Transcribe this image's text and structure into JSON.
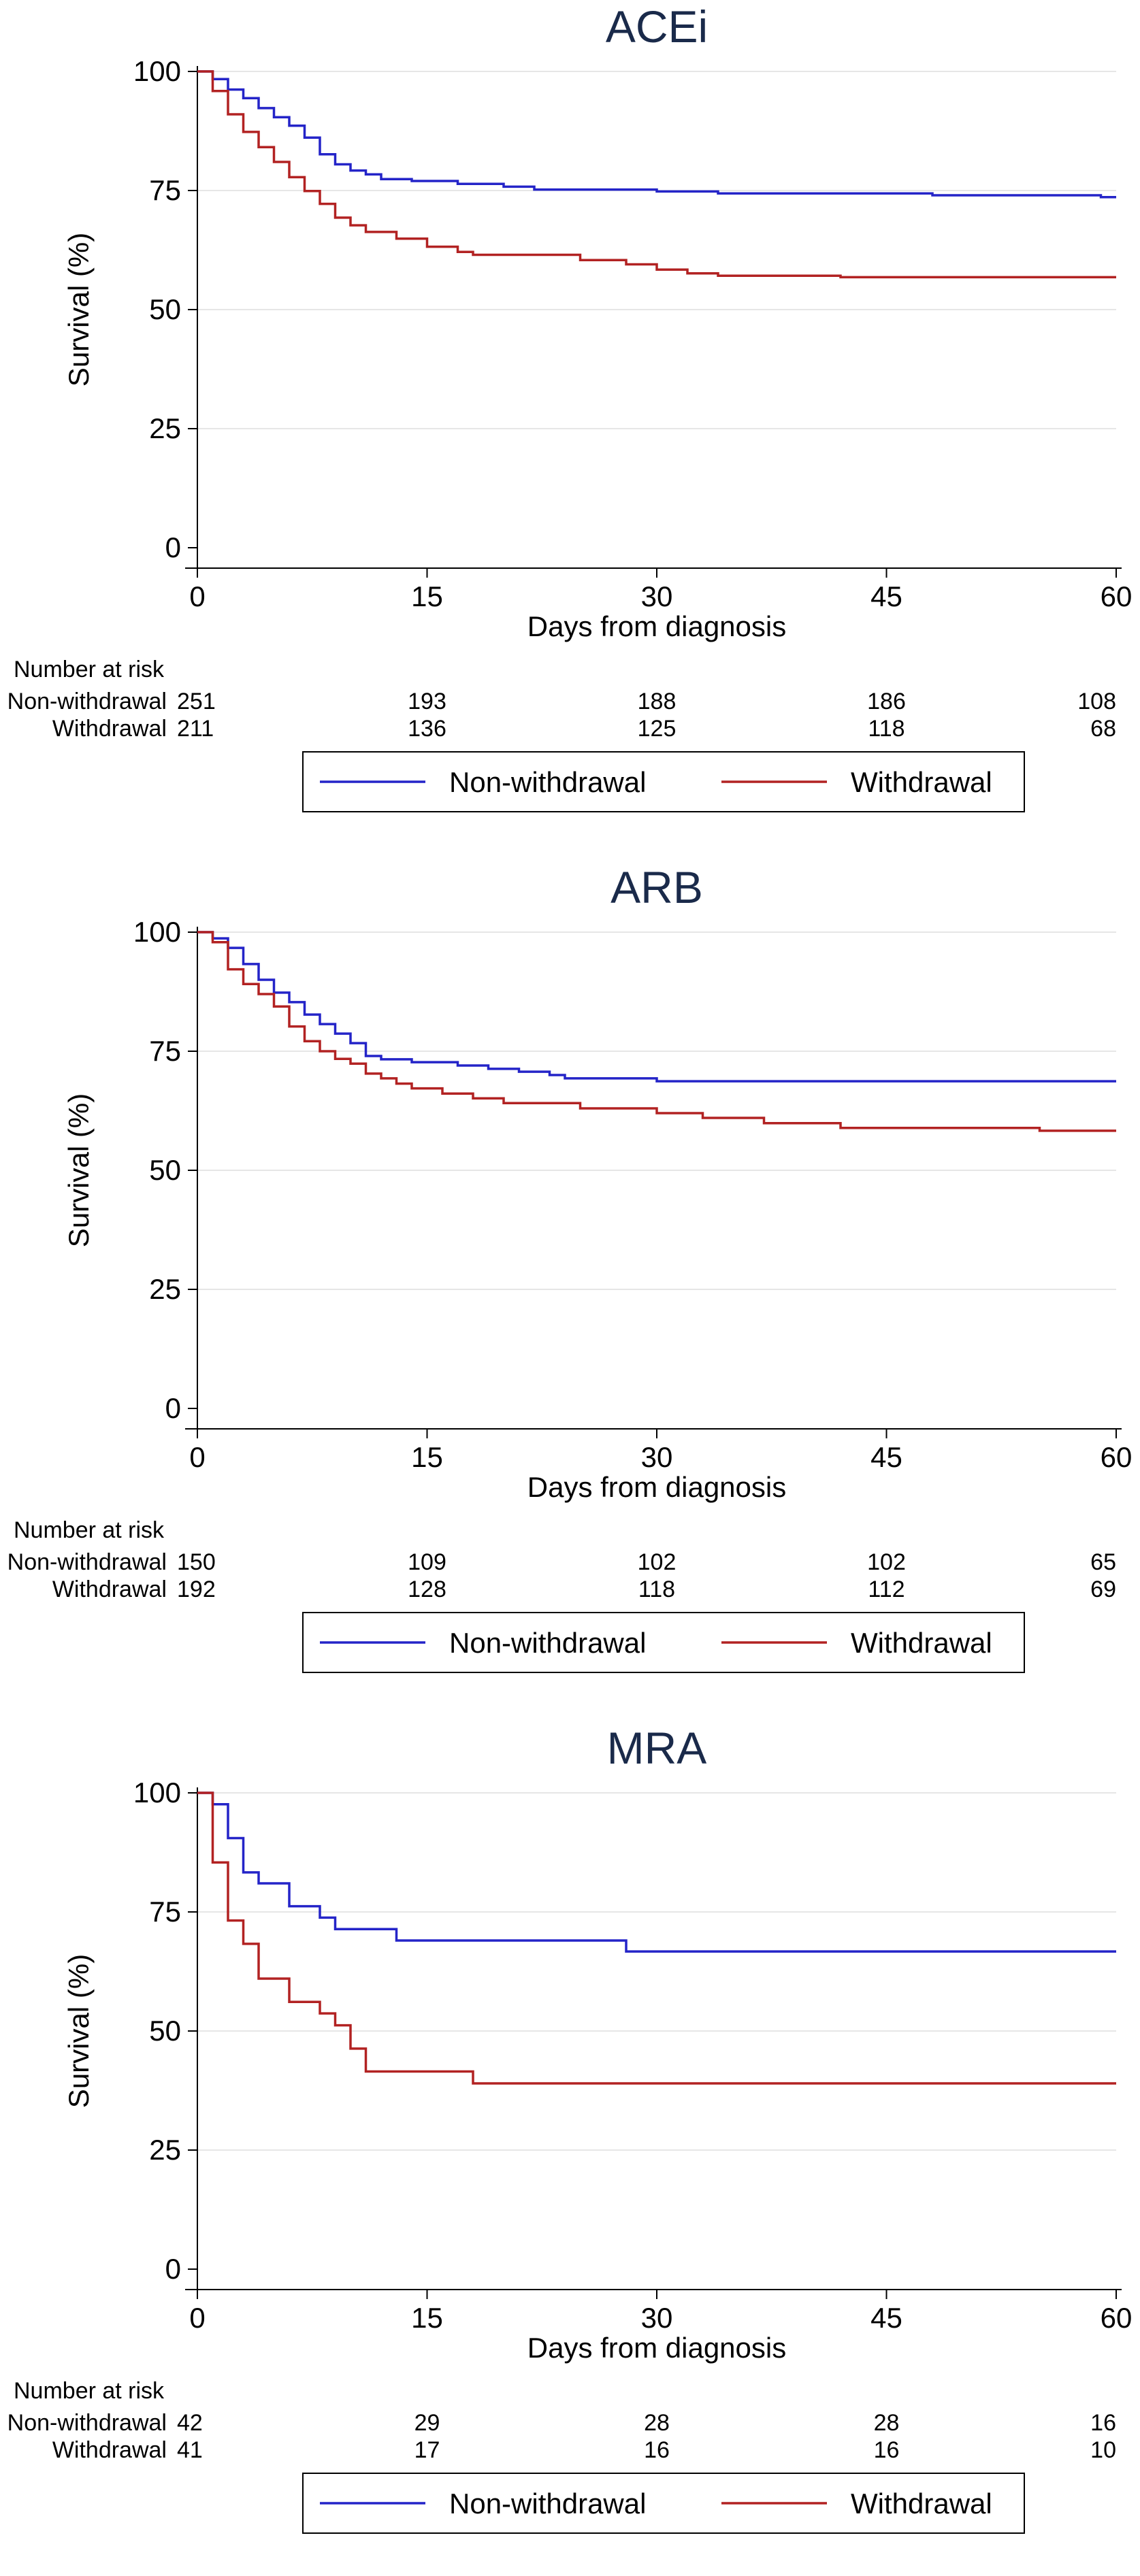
{
  "chart_data": [
    {
      "type": "line",
      "step": true,
      "title": "ACEi",
      "xlabel": "Days from diagnosis",
      "ylabel": "Survival (%)",
      "xlim": [
        0,
        60
      ],
      "ylim": [
        0,
        100
      ],
      "xticks": [
        "0",
        "15",
        "30",
        "45",
        "60"
      ],
      "yticks": [
        "0",
        "25",
        "50",
        "75",
        "100"
      ],
      "grid": true,
      "series": [
        {
          "name": "Non-withdrawal",
          "color": "#2424c8",
          "x": [
            0,
            1,
            2,
            3,
            4,
            5,
            6,
            7,
            8,
            9,
            10,
            11,
            12,
            14,
            17,
            20,
            22,
            30,
            34,
            48,
            59,
            60
          ],
          "y": [
            100,
            98.4,
            96.2,
            94.4,
            92.3,
            90.4,
            88.6,
            86.1,
            82.6,
            80.5,
            79.2,
            78.4,
            77.4,
            77.0,
            76.4,
            75.8,
            75.2,
            74.8,
            74.4,
            74.0,
            73.6,
            73.6
          ]
        },
        {
          "name": "Withdrawal",
          "color": "#b22222",
          "x": [
            0,
            1,
            2,
            3,
            4,
            5,
            6,
            7,
            8,
            9,
            10,
            11,
            13,
            15,
            17,
            18,
            25,
            28,
            30,
            32,
            34,
            42,
            60
          ],
          "y": [
            100,
            95.9,
            91.0,
            87.3,
            84.1,
            81.0,
            77.8,
            74.9,
            72.2,
            69.3,
            67.7,
            66.3,
            64.9,
            63.2,
            62.1,
            61.5,
            60.4,
            59.5,
            58.4,
            57.6,
            57.1,
            56.8,
            56.8
          ]
        }
      ],
      "risk_table": {
        "heading": "Number at risk",
        "times": [
          0,
          15,
          30,
          45,
          60
        ],
        "rows": [
          {
            "label": "Non-withdrawal",
            "counts": [
              "251",
              "193",
              "188",
              "186",
              "108"
            ]
          },
          {
            "label": "Withdrawal",
            "counts": [
              "211",
              "136",
              "125",
              "118",
              "68"
            ]
          }
        ]
      },
      "legend": [
        "Non-withdrawal",
        "Withdrawal"
      ]
    },
    {
      "type": "line",
      "step": true,
      "title": "ARB",
      "xlabel": "Days from diagnosis",
      "ylabel": "Survival (%)",
      "xlim": [
        0,
        60
      ],
      "ylim": [
        0,
        100
      ],
      "xticks": [
        "0",
        "15",
        "30",
        "45",
        "60"
      ],
      "yticks": [
        "0",
        "25",
        "50",
        "75",
        "100"
      ],
      "grid": true,
      "series": [
        {
          "name": "Non-withdrawal",
          "color": "#2424c8",
          "x": [
            0,
            1,
            2,
            3,
            4,
            5,
            6,
            7,
            8,
            9,
            10,
            11,
            12,
            14,
            17,
            19,
            21,
            23,
            24,
            30,
            60
          ],
          "y": [
            100,
            98.7,
            96.7,
            93.3,
            90.0,
            87.3,
            85.3,
            82.7,
            80.7,
            78.7,
            76.7,
            74.0,
            73.3,
            72.7,
            72.0,
            71.3,
            70.7,
            70.0,
            69.3,
            68.7,
            68.7
          ]
        },
        {
          "name": "Withdrawal",
          "color": "#b22222",
          "x": [
            0,
            1,
            2,
            3,
            4,
            5,
            6,
            7,
            8,
            9,
            10,
            11,
            12,
            13,
            14,
            16,
            18,
            20,
            25,
            30,
            33,
            37,
            42,
            55,
            60
          ],
          "y": [
            100,
            97.9,
            92.2,
            89.1,
            87.0,
            84.4,
            80.2,
            77.1,
            75.0,
            73.4,
            72.4,
            70.3,
            69.3,
            68.2,
            67.2,
            66.1,
            65.1,
            64.1,
            63.0,
            62.0,
            61.0,
            59.9,
            58.9,
            58.3,
            58.3
          ]
        }
      ],
      "risk_table": {
        "heading": "Number at risk",
        "times": [
          0,
          15,
          30,
          45,
          60
        ],
        "rows": [
          {
            "label": "Non-withdrawal",
            "counts": [
              "150",
              "109",
              "102",
              "102",
              "65"
            ]
          },
          {
            "label": "Withdrawal",
            "counts": [
              "192",
              "128",
              "118",
              "112",
              "69"
            ]
          }
        ]
      },
      "legend": [
        "Non-withdrawal",
        "Withdrawal"
      ]
    },
    {
      "type": "line",
      "step": true,
      "title": "MRA",
      "xlabel": "Days from diagnosis",
      "ylabel": "Survival (%)",
      "xlim": [
        0,
        60
      ],
      "ylim": [
        0,
        100
      ],
      "xticks": [
        "0",
        "15",
        "30",
        "45",
        "60"
      ],
      "yticks": [
        "0",
        "25",
        "50",
        "75",
        "100"
      ],
      "grid": true,
      "series": [
        {
          "name": "Non-withdrawal",
          "color": "#2424c8",
          "x": [
            0,
            1,
            2,
            3,
            4,
            6,
            8,
            9,
            13,
            28,
            60
          ],
          "y": [
            100,
            97.6,
            90.5,
            83.3,
            81.0,
            76.2,
            73.8,
            71.4,
            69.0,
            66.7,
            66.7
          ]
        },
        {
          "name": "Withdrawal",
          "color": "#b22222",
          "x": [
            0,
            1,
            2,
            3,
            4,
            6,
            8,
            9,
            10,
            11,
            18,
            60
          ],
          "y": [
            100,
            85.4,
            73.2,
            68.3,
            61.0,
            56.1,
            53.7,
            51.2,
            46.3,
            41.5,
            39.0,
            39.0
          ]
        }
      ],
      "risk_table": {
        "heading": "Number at risk",
        "times": [
          0,
          15,
          30,
          45,
          60
        ],
        "rows": [
          {
            "label": "Non-withdrawal",
            "counts": [
              "42",
              "29",
              "28",
              "28",
              "16"
            ]
          },
          {
            "label": "Withdrawal",
            "counts": [
              "41",
              "17",
              "16",
              "16",
              "10"
            ]
          }
        ]
      },
      "legend": [
        "Non-withdrawal",
        "Withdrawal"
      ]
    }
  ]
}
